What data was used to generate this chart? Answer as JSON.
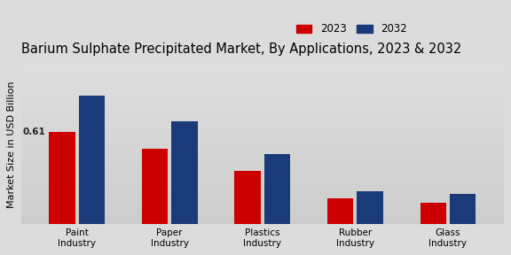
{
  "title": "Barium Sulphate Precipitated Market, By Applications, 2023 & 2032",
  "ylabel": "Market Size in USD Billion",
  "categories": [
    "Paint\nIndustry",
    "Paper\nIndustry",
    "Plastics\nIndustry",
    "Rubber\nIndustry",
    "Glass\nIndustry"
  ],
  "values_2023": [
    0.61,
    0.5,
    0.35,
    0.17,
    0.14
  ],
  "values_2032": [
    0.85,
    0.68,
    0.46,
    0.22,
    0.2
  ],
  "color_2023": "#cc0000",
  "color_2032": "#1a3a7a",
  "annotation_value": "0.61",
  "annotation_bar_index": 0,
  "background_color_top": "#d8d8d8",
  "background_color_bottom": "#c8c8c8",
  "legend_labels": [
    "2023",
    "2032"
  ],
  "bar_width": 0.28,
  "ylim": [
    0,
    1.05
  ],
  "title_fontsize": 10.5,
  "axis_fontsize": 8,
  "tick_fontsize": 7.5,
  "legend_fontsize": 8.5
}
